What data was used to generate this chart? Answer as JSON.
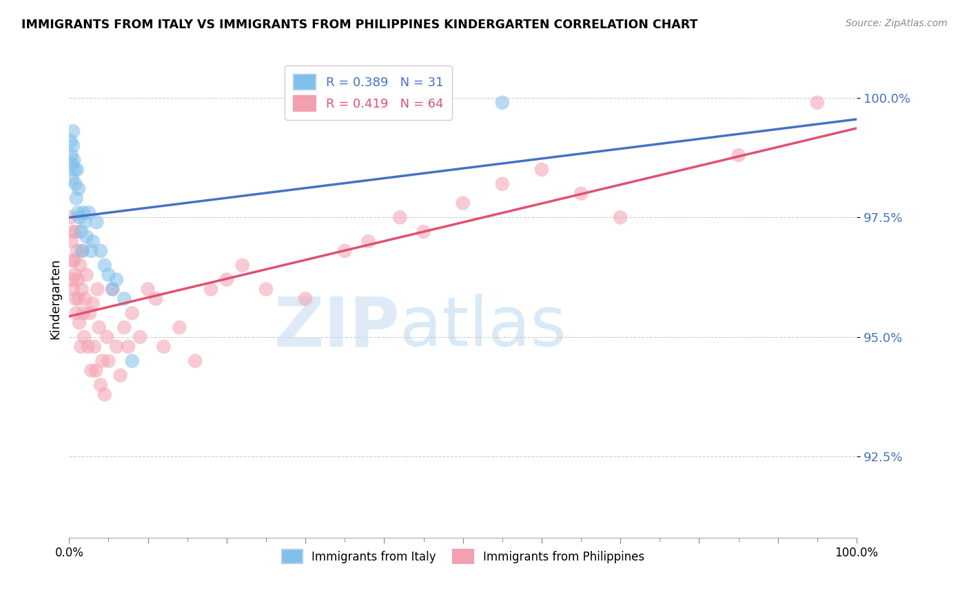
{
  "title": "IMMIGRANTS FROM ITALY VS IMMIGRANTS FROM PHILIPPINES KINDERGARTEN CORRELATION CHART",
  "source": "Source: ZipAtlas.com",
  "ylabel": "Kindergarten",
  "legend_italy": "Immigrants from Italy",
  "legend_philippines": "Immigrants from Philippines",
  "italy_R": 0.389,
  "italy_N": 31,
  "philippines_R": 0.419,
  "philippines_N": 64,
  "italy_color": "#7fbfea",
  "philippines_color": "#f4a0b0",
  "italy_line_color": "#4472c4",
  "philippines_line_color": "#e05070",
  "xmin": 0.0,
  "xmax": 1.0,
  "ymin": 0.908,
  "ymax": 1.008,
  "yticks": [
    0.925,
    0.95,
    0.975,
    1.0
  ],
  "ytick_labels": [
    "92.5%",
    "95.0%",
    "97.5%",
    "100.0%"
  ],
  "xticks": [
    0.0,
    0.1,
    0.2,
    0.3,
    0.4,
    0.5,
    0.6,
    0.7,
    0.8,
    0.9,
    1.0
  ],
  "xtick_labels_show": [
    "0.0%",
    "",
    "",
    "",
    "",
    "",
    "",
    "",
    "",
    "",
    "100.0%"
  ],
  "watermark_zip": "ZIP",
  "watermark_atlas": "atlas",
  "italy_x": [
    0.002,
    0.003,
    0.004,
    0.004,
    0.005,
    0.005,
    0.006,
    0.007,
    0.008,
    0.009,
    0.01,
    0.011,
    0.012,
    0.013,
    0.015,
    0.016,
    0.018,
    0.02,
    0.022,
    0.025,
    0.028,
    0.03,
    0.035,
    0.04,
    0.045,
    0.05,
    0.055,
    0.06,
    0.07,
    0.08,
    0.55
  ],
  "italy_y": [
    0.991,
    0.988,
    0.986,
    0.983,
    0.993,
    0.99,
    0.987,
    0.985,
    0.982,
    0.979,
    0.985,
    0.976,
    0.981,
    0.975,
    0.972,
    0.968,
    0.976,
    0.974,
    0.971,
    0.976,
    0.968,
    0.97,
    0.974,
    0.968,
    0.965,
    0.963,
    0.96,
    0.962,
    0.958,
    0.945,
    0.999
  ],
  "phil_x": [
    0.002,
    0.003,
    0.004,
    0.004,
    0.005,
    0.005,
    0.006,
    0.007,
    0.008,
    0.008,
    0.009,
    0.01,
    0.011,
    0.012,
    0.013,
    0.014,
    0.015,
    0.016,
    0.017,
    0.018,
    0.019,
    0.02,
    0.022,
    0.024,
    0.026,
    0.028,
    0.03,
    0.032,
    0.034,
    0.036,
    0.038,
    0.04,
    0.042,
    0.045,
    0.048,
    0.05,
    0.055,
    0.06,
    0.065,
    0.07,
    0.075,
    0.08,
    0.09,
    0.1,
    0.11,
    0.12,
    0.14,
    0.16,
    0.18,
    0.2,
    0.22,
    0.25,
    0.3,
    0.35,
    0.38,
    0.42,
    0.45,
    0.5,
    0.55,
    0.6,
    0.65,
    0.7,
    0.85,
    0.95
  ],
  "phil_y": [
    0.975,
    0.97,
    0.966,
    0.962,
    0.96,
    0.972,
    0.966,
    0.963,
    0.958,
    0.972,
    0.955,
    0.968,
    0.962,
    0.958,
    0.953,
    0.965,
    0.948,
    0.96,
    0.968,
    0.955,
    0.95,
    0.958,
    0.963,
    0.948,
    0.955,
    0.943,
    0.957,
    0.948,
    0.943,
    0.96,
    0.952,
    0.94,
    0.945,
    0.938,
    0.95,
    0.945,
    0.96,
    0.948,
    0.942,
    0.952,
    0.948,
    0.955,
    0.95,
    0.96,
    0.958,
    0.948,
    0.952,
    0.945,
    0.96,
    0.962,
    0.965,
    0.96,
    0.958,
    0.968,
    0.97,
    0.975,
    0.972,
    0.978,
    0.982,
    0.985,
    0.98,
    0.975,
    0.988,
    0.999
  ]
}
